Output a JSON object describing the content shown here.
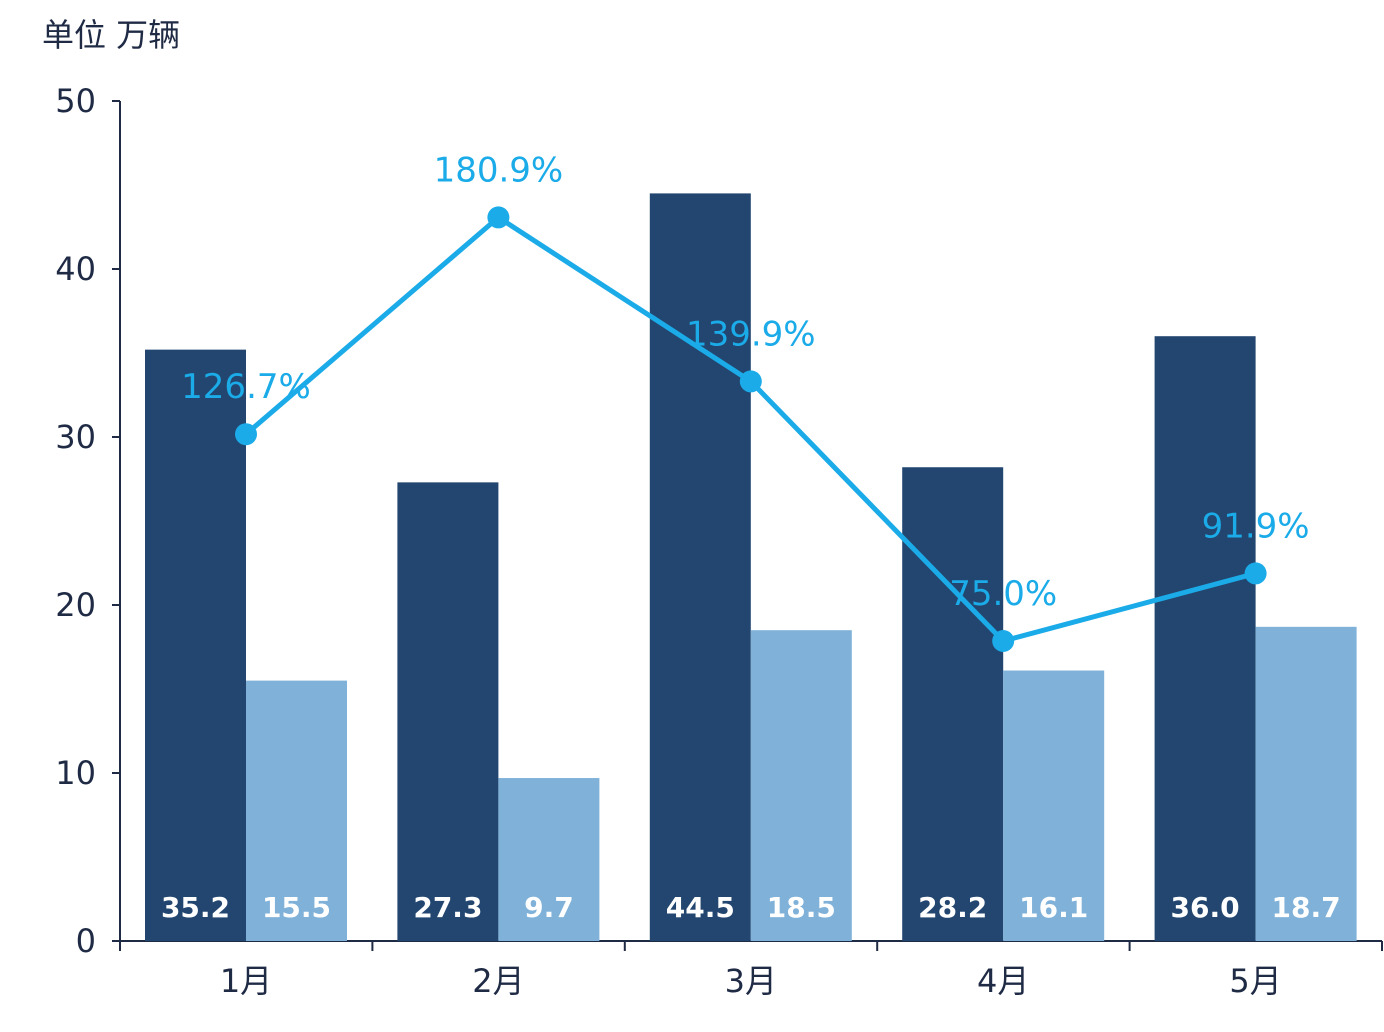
{
  "chart_data": {
    "type": "bar",
    "unit_label": "单位 万辆",
    "categories": [
      "1月",
      "2月",
      "3月",
      "4月",
      "5月"
    ],
    "series": [
      {
        "name": "series-1",
        "kind": "bar",
        "color": "#22466f",
        "values": [
          35.2,
          27.3,
          44.5,
          28.2,
          36.0
        ],
        "labels": [
          "35.2",
          "27.3",
          "44.5",
          "28.2",
          "36.0"
        ]
      },
      {
        "name": "series-2",
        "kind": "bar",
        "color": "#7fb1d9",
        "values": [
          15.5,
          9.7,
          18.5,
          16.1,
          18.7
        ],
        "labels": [
          "15.5",
          "9.7",
          "18.5",
          "16.1",
          "18.7"
        ]
      },
      {
        "name": "growth",
        "kind": "line",
        "color": "#1aabe8",
        "values": [
          126.7,
          180.9,
          139.9,
          75.0,
          91.9
        ],
        "labels": [
          "126.7%",
          "180.9%",
          "139.9%",
          "75.0%",
          "91.9%"
        ]
      }
    ],
    "ylim": [
      0,
      50
    ],
    "yticks": [
      "0",
      "10",
      "20",
      "30",
      "40",
      "50"
    ],
    "line_ylim": [
      0,
      210
    ],
    "grid": false,
    "legend": "none"
  }
}
